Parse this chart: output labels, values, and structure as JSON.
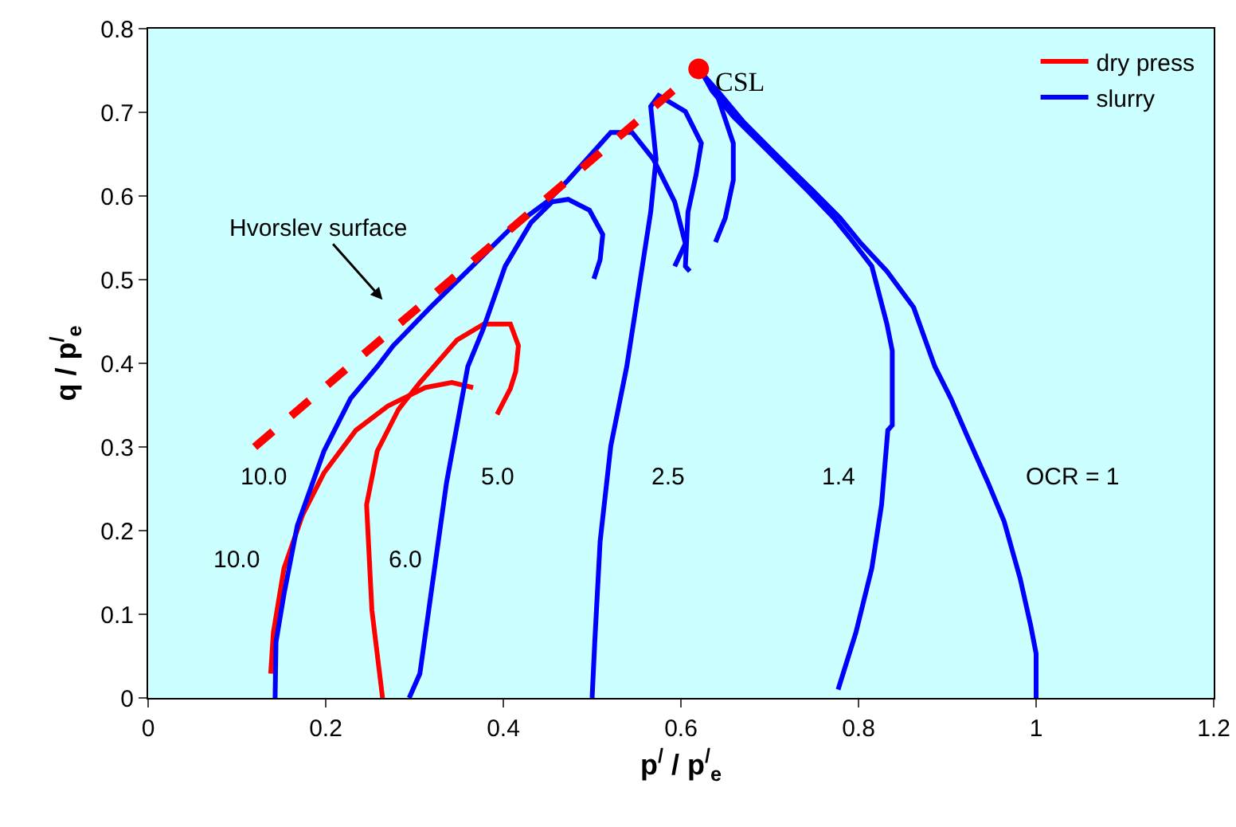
{
  "chart_data": {
    "type": "line",
    "xlabel": "p$^{/}$ / p$^{/}$$_{e}$",
    "ylabel": "q / p$^{/}$$_{e}$",
    "xlim": [
      0,
      1.2
    ],
    "xticks": [
      0,
      0.2,
      0.4,
      0.6,
      0.8,
      1,
      1.2
    ],
    "ylim": [
      0,
      0.8
    ],
    "yticks": [
      0,
      0.1,
      0.2,
      0.3,
      0.4,
      0.5,
      0.6,
      0.7,
      0.8
    ],
    "grid": false,
    "legend": "top right",
    "marker": "none",
    "line_style": "solid",
    "series": [
      {
        "name": "dry press",
        "color": "#ff0000",
        "x": [
          0.138,
          0.141,
          0.153,
          0.174,
          0.198,
          0.234,
          0.27,
          0.312,
          0.342,
          0.366,
          null,
          0.264,
          0.252,
          0.246,
          0.258,
          0.282,
          0.306,
          0.348,
          0.378,
          0.408,
          0.417,
          0.414,
          0.408,
          0.393
        ],
        "values": [
          0.029,
          0.078,
          0.155,
          0.219,
          0.269,
          0.32,
          0.349,
          0.371,
          0.377,
          0.371,
          null,
          0,
          0.105,
          0.231,
          0.295,
          0.345,
          0.377,
          0.428,
          0.447,
          0.447,
          0.421,
          0.39,
          0.37,
          0.339
        ]
      },
      {
        "name": "slurry",
        "color": "#0000ff",
        "x": [
          1,
          1,
          0.994,
          0.982,
          0.964,
          0.946,
          0.922,
          0.904,
          0.886,
          0.862,
          0.832,
          0.803,
          0.779,
          0.749,
          0.7,
          0.671,
          0.641,
          0.625,
          null,
          0.777,
          0.797,
          0.815,
          0.826,
          0.833,
          0.838,
          0.838,
          0.832,
          0.815,
          0.791,
          0.772,
          0.743,
          0.695,
          0.659,
          0.635,
          0.625,
          null,
          0.625,
          0.641,
          0.659,
          0.659,
          0.65,
          0.639,
          null,
          0.5,
          0.503,
          0.509,
          0.521,
          0.539,
          0.551,
          0.566,
          0.572,
          0.566,
          0.575,
          0.605,
          0.623,
          0.617,
          0.608,
          0.605,
          0.61,
          null,
          0.294,
          0.306,
          0.321,
          0.336,
          0.36,
          0.377,
          0.402,
          0.431,
          0.455,
          0.473,
          0.497,
          0.512,
          0.509,
          0.502,
          null,
          0.143,
          0.144,
          0.153,
          0.168,
          0.198,
          0.228,
          0.258,
          0.276,
          0.318,
          0.366,
          0.408,
          0.449,
          0.473,
          0.521,
          0.545,
          0.569,
          0.593,
          0.605,
          0.593
        ],
        "values": [
          0,
          0.053,
          0.086,
          0.143,
          0.211,
          0.257,
          0.314,
          0.358,
          0.396,
          0.467,
          0.51,
          0.543,
          0.574,
          0.606,
          0.657,
          0.688,
          0.726,
          0.745,
          null,
          0.01,
          0.078,
          0.155,
          0.231,
          0.32,
          0.326,
          0.415,
          0.447,
          0.516,
          0.549,
          0.574,
          0.606,
          0.657,
          0.695,
          0.726,
          0.745,
          null,
          0.745,
          0.72,
          0.663,
          0.619,
          0.574,
          0.545,
          null,
          0,
          0.067,
          0.187,
          0.301,
          0.396,
          0.478,
          0.581,
          0.644,
          0.707,
          0.72,
          0.701,
          0.663,
          0.625,
          0.581,
          0.516,
          0.51,
          null,
          0,
          0.029,
          0.143,
          0.257,
          0.396,
          0.44,
          0.516,
          0.568,
          0.593,
          0.596,
          0.583,
          0.554,
          0.524,
          0.501,
          null,
          0,
          0.067,
          0.124,
          0.206,
          0.295,
          0.358,
          0.396,
          0.421,
          0.467,
          0.517,
          0.561,
          0.593,
          0.619,
          0.676,
          0.676,
          0.644,
          0.593,
          0.543,
          0.516
        ]
      },
      {
        "color": "#ff0000",
        "line_style": "dashed",
        "x": [
          0.12,
          0.62
        ],
        "values": [
          0.3,
          0.752
        ]
      },
      {
        "type": "scatter",
        "color": "#ff0000",
        "marker": "circle",
        "x": [
          0.62
        ],
        "values": [
          0.752
        ]
      }
    ],
    "annotations": [
      {
        "text": "CSL",
        "x": 0.62,
        "y": 0.752
      },
      "Hvorslev surface",
      "10.0",
      "10.0",
      "6.0",
      "5.0",
      "2.5",
      "1.4",
      "OCR = 1"
    ]
  }
}
